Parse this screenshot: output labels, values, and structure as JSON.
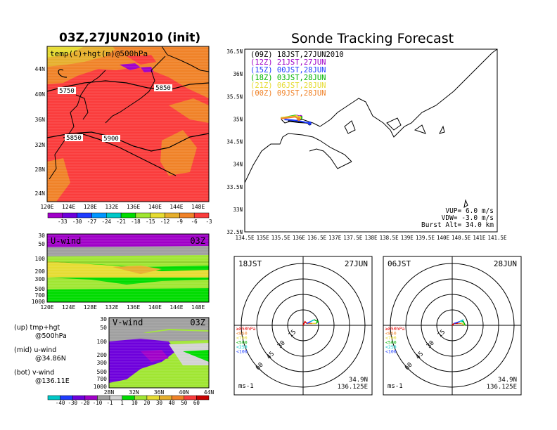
{
  "left_title": "03Z,27JUN2010 (init)",
  "right_title": "Sonde Tracking Forecast",
  "map500": {
    "label": "temp(C)+hgt(m)@500hPa",
    "lat_ticks": [
      "44N",
      "40N",
      "36N",
      "32N",
      "28N",
      "24N"
    ],
    "lon_ticks": [
      "120E",
      "124E",
      "128E",
      "132E",
      "136E",
      "140E",
      "144E",
      "148E"
    ],
    "contour_labels": [
      "5750",
      "5850",
      "5850",
      "5900"
    ],
    "colorbar": [
      "-33",
      "-30",
      "-27",
      "-24",
      "-21",
      "-18",
      "-15",
      "-12",
      "-9",
      "-6",
      "-3"
    ],
    "colorbar_colors": [
      "#a000c8",
      "#6e00dc",
      "#1e3cff",
      "#0096ff",
      "#00c8c8",
      "#00dc00",
      "#a0e632",
      "#e6dc32",
      "#e6af2d",
      "#f08228",
      "#fa3c3c"
    ]
  },
  "uwind": {
    "label": "U-wind",
    "time": "03Z",
    "p_ticks": [
      "30",
      "50",
      "100",
      "200",
      "300",
      "500",
      "700",
      "1000"
    ],
    "lon_ticks": [
      "120E",
      "124E",
      "128E",
      "132E",
      "136E",
      "140E",
      "144E",
      "148E"
    ]
  },
  "vwind": {
    "label": "V-wind",
    "time": "03Z",
    "p_ticks": [
      "30",
      "50",
      "100",
      "200",
      "300",
      "500",
      "700",
      "1000"
    ],
    "lat_ticks": [
      "28N",
      "32N",
      "36N",
      "40N",
      "44N"
    ]
  },
  "notes": [
    {
      "a": "(up) tmp+hgt",
      "b": "@500hPa"
    },
    {
      "a": "(mid) u-wind",
      "b": "@34.86N"
    },
    {
      "a": "(bot) v-wind",
      "b": "@136.11E"
    }
  ],
  "wind_colorbar": [
    "-40",
    "-30",
    "-20",
    "-10",
    "-1",
    "1",
    "10",
    "20",
    "30",
    "40",
    "50",
    "60"
  ],
  "wind_colorbar_colors": [
    "#00c8c8",
    "#1e3cff",
    "#6e00dc",
    "#a000c8",
    "#a0a0a0",
    "#d2d2d2",
    "#00dc00",
    "#a0e632",
    "#e6dc32",
    "#e6af2d",
    "#f08228",
    "#fa3c3c",
    "#c80000"
  ],
  "tracking": {
    "lat_ticks": [
      "36.5N",
      "36N",
      "35.5N",
      "35N",
      "34.5N",
      "34N",
      "33.5N",
      "33N",
      "32.5N"
    ],
    "lon_ticks": [
      "134.5E",
      "135E",
      "135.5E",
      "136E",
      "136.5E",
      "137E",
      "137.5E",
      "138E",
      "138.5E",
      "139E",
      "139.5E",
      "140E",
      "140.5E",
      "141E",
      "141.5E"
    ],
    "legend": [
      {
        "t": "(09Z)  18JST,27JUN2010",
        "c": "#000000"
      },
      {
        "t": "(12Z)  21JST,27JUN",
        "c": "#a000c8"
      },
      {
        "t": "(15Z)  00JST,28JUN",
        "c": "#1e3cff"
      },
      {
        "t": "(18Z)  03JST,28JUN",
        "c": "#00b400"
      },
      {
        "t": "(21Z)  06JST,28JUN",
        "c": "#e6dc32"
      },
      {
        "t": "(00Z)  09JST,28JUN",
        "c": "#f08228"
      }
    ],
    "params": [
      "VUP=  6.0 m/s",
      "VDW= -3.0 m/s",
      "Burst Alt= 34.0 km"
    ]
  },
  "hodo_left": {
    "time": "18JST",
    "date": "27JUN",
    "loc1": "34.9N",
    "loc2": "136.125E",
    "units": "ms-1"
  },
  "hodo_right": {
    "time": "06JST",
    "date": "28JUN",
    "loc1": "34.9N",
    "loc2": "136.125E",
    "units": "ms-1"
  },
  "hodo_rings": [
    "15",
    "30",
    "45",
    "60"
  ],
  "hodo_levels": [
    {
      "t": "≥850hPa",
      "c": "#e60000"
    },
    {
      "t": "<850",
      "c": "#f08228"
    },
    {
      "t": "<700",
      "c": "#e6dc32"
    },
    {
      "t": "<500",
      "c": "#00b400"
    },
    {
      "t": "<250",
      "c": "#00c8c8"
    },
    {
      "t": "<100",
      "c": "#1e3cff"
    }
  ],
  "chart_data": [
    {
      "type": "heatmap",
      "title": "temp(C)+hgt(m)@500hPa",
      "x_ticks": [
        "120E",
        "124E",
        "128E",
        "132E",
        "136E",
        "140E",
        "144E",
        "148E"
      ],
      "y_ticks": [
        "24N",
        "28N",
        "32N",
        "36N",
        "40N",
        "44N"
      ],
      "colorbar": [
        -33,
        -30,
        -27,
        -24,
        -21,
        -18,
        -15,
        -12,
        -9,
        -6,
        -3
      ],
      "contour_labels": [
        5750,
        5850,
        5850,
        5900
      ]
    },
    {
      "type": "heatmap",
      "title": "U-wind",
      "time": "03Z",
      "x_ticks": [
        "120E",
        "124E",
        "128E",
        "132E",
        "136E",
        "140E",
        "144E",
        "148E"
      ],
      "y_ticks": [
        30,
        50,
        100,
        200,
        300,
        500,
        700,
        1000
      ],
      "colorbar": [
        -40,
        -30,
        -20,
        -10,
        -1,
        1,
        10,
        20,
        30,
        40,
        50,
        60
      ]
    },
    {
      "type": "heatmap",
      "title": "V-wind",
      "time": "03Z",
      "x_ticks": [
        "28N",
        "32N",
        "36N",
        "40N",
        "44N"
      ],
      "y_ticks": [
        30,
        50,
        100,
        200,
        300,
        500,
        700,
        1000
      ],
      "colorbar": [
        -40,
        -30,
        -20,
        -10,
        -1,
        1,
        10,
        20,
        30,
        40,
        50,
        60
      ]
    },
    {
      "type": "line",
      "title": "Sonde Tracking Forecast",
      "xlim": [
        134.5,
        141.5
      ],
      "ylim": [
        32.5,
        36.5
      ],
      "series": [
        {
          "name": "(09Z)  18JST,27JUN2010",
          "x": [
            135.7,
            135.8,
            136.0,
            136.2,
            136.3
          ],
          "y": [
            34.93,
            34.92,
            34.9,
            34.89,
            34.87
          ]
        },
        {
          "name": "(12Z)  21JST,27JUN",
          "x": [
            135.5,
            135.7,
            135.95,
            136.05
          ],
          "y": [
            34.98,
            35.0,
            35.05,
            35.02
          ]
        },
        {
          "name": "(15Z)  00JST,28JUN",
          "x": [
            135.6,
            135.8,
            136.0,
            136.3
          ],
          "y": [
            34.96,
            34.95,
            34.93,
            34.88
          ]
        },
        {
          "name": "(18Z)  03JST,28JUN",
          "x": [
            135.5,
            135.7,
            135.9,
            136.05
          ],
          "y": [
            34.99,
            35.02,
            35.05,
            35.0
          ]
        },
        {
          "name": "(21Z)  06JST,28JUN",
          "x": [
            135.5,
            135.75,
            135.95,
            136.02
          ],
          "y": [
            35.0,
            35.02,
            35.04,
            35.0
          ]
        },
        {
          "name": "(00Z)  09JST,28JUN",
          "x": [
            135.5,
            135.7,
            135.9,
            136.0
          ],
          "y": [
            34.98,
            35.0,
            35.02,
            34.97
          ]
        }
      ]
    },
    {
      "type": "scatter",
      "title": "18JST 27JUN",
      "rings": [
        15,
        30,
        45,
        60
      ],
      "series": [
        {
          "name": "≥850hPa",
          "x": [
            0,
            1,
            2
          ],
          "y": [
            0,
            -2,
            -1
          ]
        },
        {
          "name": "<850",
          "x": [
            2,
            5
          ],
          "y": [
            -1,
            -1
          ]
        },
        {
          "name": "<700",
          "x": [
            5,
            7
          ],
          "y": [
            -1,
            -1
          ]
        },
        {
          "name": "<500",
          "x": [
            7,
            8,
            6
          ],
          "y": [
            -1,
            -2,
            -3
          ]
        },
        {
          "name": "<250",
          "x": [
            6,
            4
          ],
          "y": [
            -3,
            -2
          ]
        },
        {
          "name": "<100",
          "x": [
            4,
            2
          ],
          "y": [
            -2,
            -1
          ]
        }
      ]
    },
    {
      "type": "scatter",
      "title": "06JST 28JUN",
      "rings": [
        15,
        30,
        45,
        60
      ],
      "series": [
        {
          "name": "≥850hPa",
          "x": [
            0,
            1,
            3
          ],
          "y": [
            0,
            -1,
            -1
          ]
        },
        {
          "name": "<850",
          "x": [
            3,
            5
          ],
          "y": [
            -1,
            -1
          ]
        },
        {
          "name": "<700",
          "x": [
            5,
            7
          ],
          "y": [
            -1,
            0
          ]
        },
        {
          "name": "<500",
          "x": [
            7,
            6,
            5
          ],
          "y": [
            0,
            -2,
            -2
          ]
        },
        {
          "name": "<250",
          "x": [
            5,
            6,
            4
          ],
          "y": [
            -2,
            -3,
            -2
          ]
        },
        {
          "name": "<100",
          "x": [
            4,
            1
          ],
          "y": [
            -2,
            -1
          ]
        }
      ]
    }
  ]
}
